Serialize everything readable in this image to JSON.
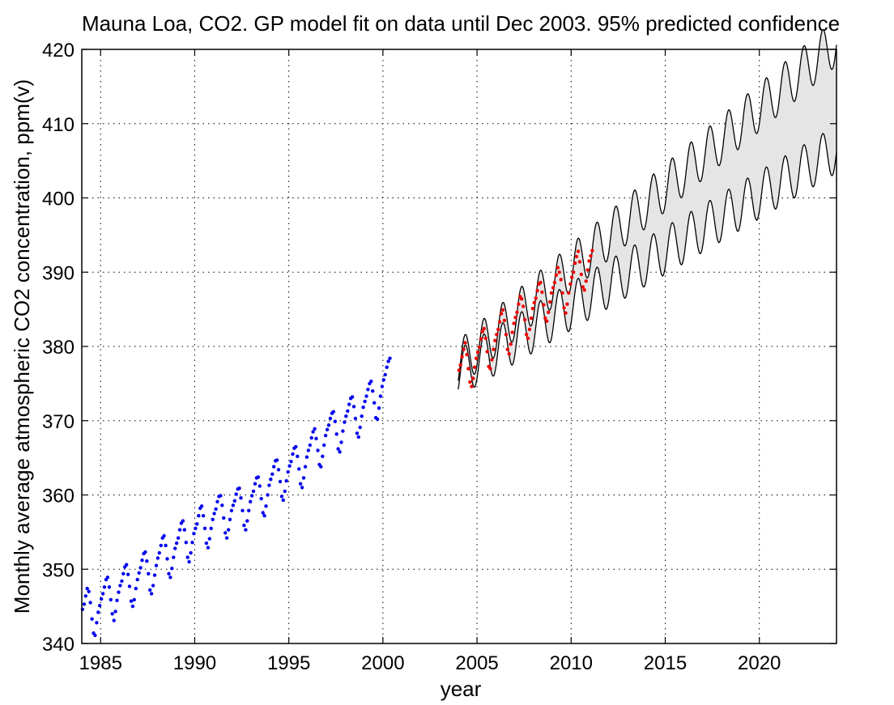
{
  "chart_data": {
    "type": "scatter",
    "title": "Mauna Loa, CO2. GP model fit on data until Dec 2003. 95% predicted confidence",
    "xlabel": "year",
    "ylabel": "Monthly average atmospheric CO2 concentration, ppm(v)",
    "xlim": [
      1984,
      2024.1
    ],
    "ylim": [
      340,
      420
    ],
    "xticks": [
      1985,
      1990,
      1995,
      2000,
      2005,
      2010,
      2015,
      2020
    ],
    "yticks": [
      340,
      350,
      360,
      370,
      380,
      390,
      400,
      410,
      420
    ],
    "grid": true,
    "colors": {
      "training": "#0000ee",
      "test": "#ee0000",
      "band_fill": "#e5e5e5",
      "band_edge": "#000000"
    },
    "training_data": {
      "x_start": 1984.04,
      "x_step": 0.0833333,
      "y": [
        344.6,
        345.3,
        346.4,
        347.4,
        347.0,
        345.5,
        343.3,
        341.4,
        341.1,
        342.8,
        344.2,
        345.1,
        346.0,
        346.7,
        347.6,
        348.6,
        348.9,
        347.6,
        345.9,
        344.0,
        343.1,
        344.3,
        345.8,
        346.9,
        347.8,
        348.4,
        349.4,
        350.3,
        350.6,
        349.3,
        347.7,
        345.7,
        345.0,
        345.9,
        347.4,
        348.6,
        349.5,
        350.2,
        351.2,
        352.1,
        352.3,
        351.1,
        349.4,
        347.2,
        346.7,
        347.8,
        349.2,
        350.5,
        351.5,
        352.2,
        353.2,
        354.2,
        354.5,
        353.2,
        351.4,
        349.4,
        348.9,
        350.1,
        351.6,
        352.8,
        353.5,
        354.2,
        355.3,
        356.2,
        356.5,
        355.3,
        353.6,
        351.6,
        351.0,
        352.2,
        353.6,
        354.8,
        355.5,
        356.1,
        357.2,
        358.2,
        358.5,
        357.2,
        355.5,
        353.5,
        352.9,
        354.1,
        355.5,
        356.7,
        357.5,
        358.1,
        359.1,
        359.8,
        359.9,
        358.6,
        356.9,
        354.9,
        354.2,
        355.3,
        356.7,
        357.9,
        358.6,
        359.2,
        360.1,
        360.8,
        360.9,
        359.6,
        357.9,
        355.9,
        355.3,
        356.5,
        357.9,
        359.1,
        359.9,
        360.5,
        361.5,
        362.3,
        362.4,
        361.2,
        359.5,
        357.6,
        357.2,
        358.5,
        360.0,
        361.3,
        362.1,
        362.8,
        363.8,
        364.6,
        364.7,
        363.4,
        361.8,
        359.8,
        359.3,
        360.5,
        361.9,
        363.1,
        363.9,
        364.5,
        365.5,
        366.3,
        366.5,
        365.2,
        363.5,
        361.5,
        361.0,
        362.3,
        363.8,
        365.1,
        366.0,
        366.7,
        367.7,
        368.5,
        368.9,
        367.6,
        366.0,
        364.1,
        363.8,
        365.2,
        366.7,
        368.0,
        368.8,
        369.4,
        370.3,
        371.0,
        371.2,
        369.9,
        368.2,
        366.2,
        365.8,
        367.1,
        368.6,
        369.8,
        370.6,
        371.3,
        372.2,
        373.0,
        373.2,
        371.9,
        370.3,
        368.3,
        367.8,
        369.1,
        370.6,
        371.8,
        372.6,
        373.3,
        374.2,
        375.0,
        375.3,
        374.0,
        372.4,
        370.4,
        370.2,
        371.7,
        373.3,
        374.6,
        375.5,
        376.2,
        377.2,
        378.0,
        378.4
      ]
    },
    "test_data": {
      "x_start": 2004.04,
      "x_step": 0.0833333,
      "y": [
        376.8,
        377.5,
        378.6,
        379.6,
        380.5,
        378.9,
        377.0,
        375.2,
        374.6,
        375.7,
        377.2,
        378.4,
        379.2,
        379.9,
        381.0,
        382.0,
        382.4,
        381.1,
        379.3,
        377.3,
        377.0,
        378.2,
        379.6,
        380.8,
        381.6,
        382.3,
        383.3,
        384.4,
        384.9,
        383.5,
        381.6,
        379.6,
        379.0,
        380.3,
        381.9,
        383.1,
        383.9,
        384.6,
        385.7,
        386.7,
        386.4,
        385.4,
        383.6,
        381.6,
        381.1,
        382.3,
        383.8,
        385.1,
        385.9,
        386.5,
        387.5,
        388.4,
        388.6,
        387.3,
        385.6,
        383.8,
        383.4,
        384.6,
        386.0,
        387.2,
        387.9,
        388.6,
        389.6,
        390.6,
        390.0,
        389.0,
        387.2,
        385.2,
        384.5,
        385.7,
        387.2,
        388.4,
        389.3,
        390.0,
        391.2,
        392.1,
        392.8,
        391.4,
        389.7,
        388.0,
        387.6,
        388.8,
        390.3,
        391.5,
        392.2,
        392.9
      ]
    },
    "confidence_band": {
      "x_start": 2004.0,
      "x_end": 2024.1,
      "trend_at_2004": 377.0,
      "trend_slope_per_year": 1.83,
      "half_width_at_2004": 0.6,
      "half_width_growth_per_year": 0.33,
      "seasonal_amplitude": 3.2
    }
  }
}
